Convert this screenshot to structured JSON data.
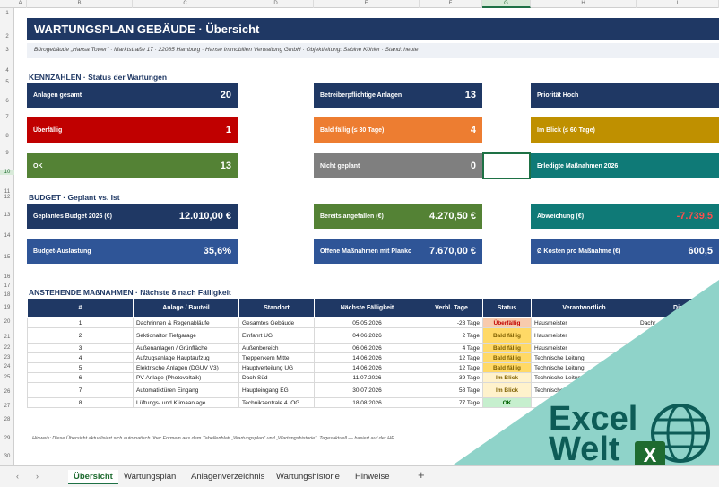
{
  "columns": [
    "A",
    "B",
    "C",
    "D",
    "E",
    "F",
    "G",
    "H",
    "I"
  ],
  "rows": [
    "1",
    "2",
    "3",
    "4",
    "5",
    "6",
    "7",
    "8",
    "9",
    "10",
    "11",
    "12",
    "13",
    "14",
    "15",
    "16",
    "17",
    "18",
    "19",
    "20",
    "21",
    "22",
    "23",
    "24",
    "25",
    "26",
    "27",
    "28",
    "29",
    "30"
  ],
  "header": {
    "title": "WARTUNGSPLAN GEBÄUDE  ·  Übersicht",
    "subtitle": "Bürogebäude „Hansa Tower\" · Marktstraße 17 · 22085 Hamburg   ·   Hanse Immobilien Verwaltung GmbH   ·   Objektleitung: Sabine Köhler   ·   Stand: heute"
  },
  "kpi_section": "KENNZAHLEN  ·  Status der Wartungen",
  "kpis": [
    {
      "label": "Anlagen gesamt",
      "value": "20",
      "color": "#1f3864"
    },
    {
      "label": "Betreiberpflichtige Anlagen",
      "value": "13",
      "color": "#1f3864"
    },
    {
      "label": "Priorität Hoch",
      "value": "",
      "color": "#1f3864"
    },
    {
      "label": "Überfällig",
      "value": "1",
      "color": "#c00000"
    },
    {
      "label": "Bald fällig (≤ 30 Tage)",
      "value": "4",
      "color": "#ed7d31"
    },
    {
      "label": "Im Blick (≤ 60 Tage)",
      "value": "",
      "color": "#bf9000"
    },
    {
      "label": "OK",
      "value": "13",
      "color": "#548235"
    },
    {
      "label": "Nicht geplant",
      "value": "0",
      "color": "#7f7f7f"
    },
    {
      "label": "Erledigte Maßnahmen 2026",
      "value": "",
      "color": "#0f7a77"
    }
  ],
  "budget_section": "BUDGET  ·  Geplant vs. Ist",
  "budget": [
    {
      "label": "Geplantes Budget 2026 (€)",
      "value": "12.010,00 €"
    },
    {
      "label": "Bereits angefallen (€)",
      "value": "4.270,50 €"
    },
    {
      "label": "Abweichung (€)",
      "value": "-7.739,5"
    },
    {
      "label": "Budget-Auslastung",
      "value": "35,6%"
    },
    {
      "label": "Offene Maßnahmen mit Planko",
      "value": "7.670,00 €"
    },
    {
      "label": "Ø Kosten pro Maßnahme (€)",
      "value": "600,5"
    }
  ],
  "table_section": "ANSTEHENDE MAßNAHMEN  ·  Nächste 8 nach Fälligkeit",
  "table": {
    "headers": [
      "#",
      "Anlage / Bauteil",
      "Standort",
      "Nächste Fälligkeit",
      "Verbl. Tage",
      "Status",
      "Verantwortlich",
      "Die"
    ],
    "rows": [
      [
        "1",
        "Dachrinnen & Regenabläufe",
        "Gesamtes Gebäude",
        "05.05.2026",
        "-28 Tage",
        "Überfällig",
        "Hausmeister",
        "Dachr"
      ],
      [
        "2",
        "Sektionaltor Tiefgarage",
        "Einfahrt UG",
        "04.06.2026",
        "2 Tage",
        "Bald fällig",
        "Hausmeister",
        ""
      ],
      [
        "3",
        "Außenanlagen / Grünfläche",
        "Außenbereich",
        "06.06.2026",
        "4 Tage",
        "Bald fällig",
        "Hausmeister",
        ""
      ],
      [
        "4",
        "Aufzugsanlage Hauptaufzug",
        "Treppenkern Mitte",
        "14.06.2026",
        "12 Tage",
        "Bald fällig",
        "Technische Leitung",
        ""
      ],
      [
        "5",
        "Elektrische Anlagen (DGUV V3)",
        "Hauptverteilung UG",
        "14.06.2026",
        "12 Tage",
        "Bald fällig",
        "Technische Leitung",
        ""
      ],
      [
        "6",
        "PV-Anlage (Photovoltaik)",
        "Dach Süd",
        "11.07.2026",
        "39 Tage",
        "Im Blick",
        "Technische Leitung",
        ""
      ],
      [
        "7",
        "Automatiktüren Eingang",
        "Haupteingang EG",
        "30.07.2026",
        "58 Tage",
        "Im Blick",
        "Technische Leitung",
        ""
      ],
      [
        "8",
        "Lüftungs- und Klimaanlage",
        "Technikzentrale 4. OG",
        "18.08.2026",
        "77 Tage",
        "OK",
        "",
        ""
      ]
    ]
  },
  "hint": "Hinweis: Diese Übersicht aktualisiert sich automatisch über Formeln aus dem Tabellenblatt „Wartungsplan\" und „Wartungshistorie\". Tagesaktuell — basiert auf der HE",
  "tabs": [
    "Übersicht",
    "Wartungsplan",
    "Anlagenverzeichnis",
    "Wartungshistorie",
    "Hinweise"
  ],
  "logo": {
    "line1": "Excel",
    "line2": "Welt",
    "badge": "X"
  }
}
